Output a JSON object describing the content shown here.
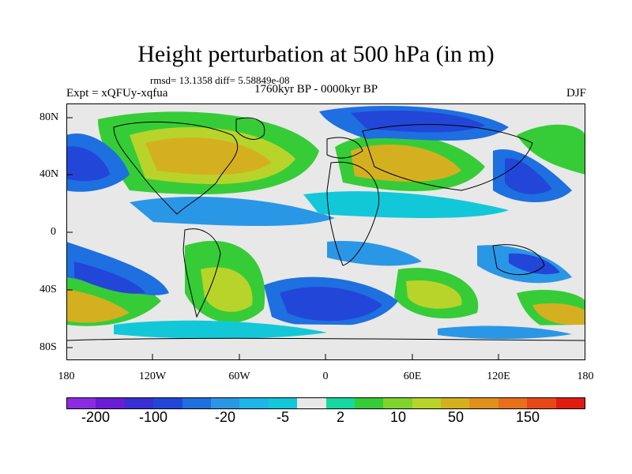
{
  "title": "Height perturbation at 500 hPa (in m)",
  "stats": "rmsd= 13.1358 diff= 5.58849e-08",
  "expt_label": "Expt = xQFUy-xqfua",
  "period_label": "1760kyr BP - 0000kyr BP",
  "season_label": "DJF",
  "y_ticks": [
    "80N",
    "40N",
    "0",
    "40S",
    "80S"
  ],
  "x_ticks": [
    "180",
    "120W",
    "60W",
    "0",
    "60E",
    "120E",
    "180"
  ],
  "colorbar": {
    "labels": [
      "-200",
      "-100",
      "-20",
      "-5",
      "2",
      "10",
      "50",
      "150"
    ],
    "colors": [
      "#8a2be2",
      "#6a1cd6",
      "#3a2fd4",
      "#2246d8",
      "#1e6fe0",
      "#2a97e6",
      "#1eb6e8",
      "#12c8d8",
      "#e8e8e8",
      "#16d8a0",
      "#36cc38",
      "#7ed42c",
      "#b8d42a",
      "#d4b020",
      "#e0901c",
      "#e8701a",
      "#e84818",
      "#e01c10"
    ]
  }
}
